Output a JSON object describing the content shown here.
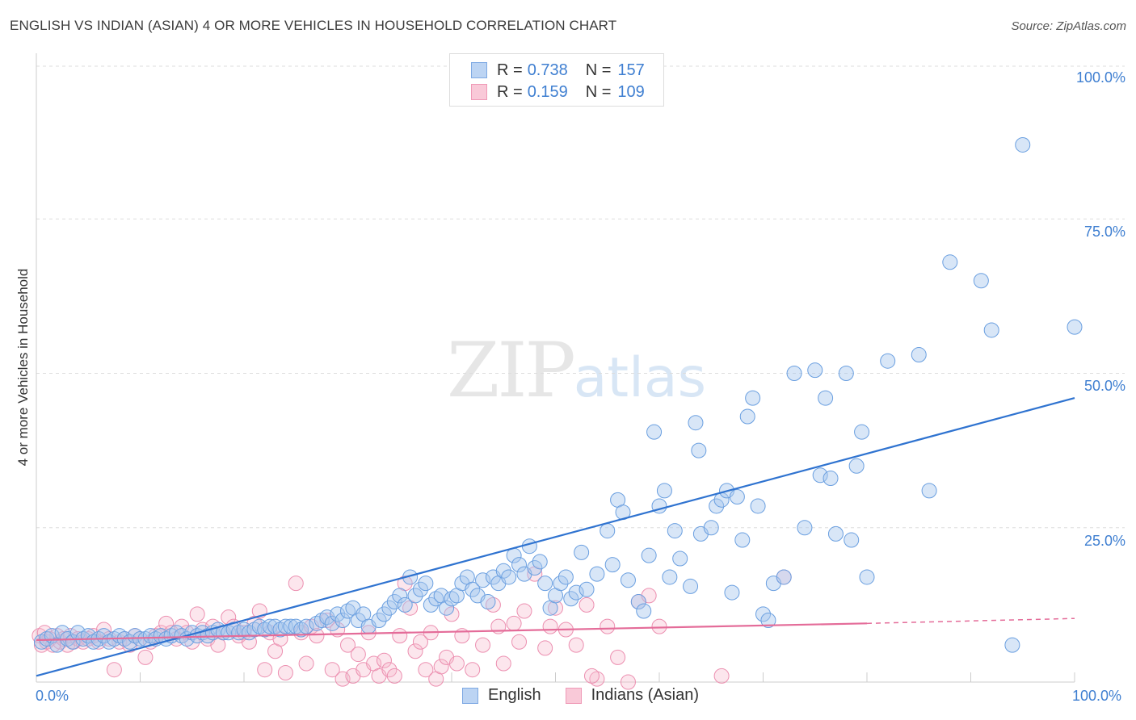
{
  "title": "ENGLISH VS INDIAN (ASIAN) 4 OR MORE VEHICLES IN HOUSEHOLD CORRELATION CHART",
  "source": "Source: ZipAtlas.com",
  "watermark": {
    "zip": "ZIP",
    "atlas": "atlas"
  },
  "legend_top": {
    "rows": [
      {
        "r_label": "R =",
        "r_value": "0.738",
        "n_label": "N =",
        "n_value": "157",
        "color": "#a9c8ee"
      },
      {
        "r_label": "R =",
        "r_value": "0.159",
        "n_label": "N =",
        "n_value": "109",
        "color": "#f5b8cc"
      }
    ]
  },
  "legend_bottom": [
    {
      "label": "English",
      "color": "#a9c8ee"
    },
    {
      "label": "Indians (Asian)",
      "color": "#f5b8cc"
    }
  ],
  "axes": {
    "ylabel": "4 or more Vehicles in Household",
    "y_ticks": [
      "100.0%",
      "75.0%",
      "50.0%",
      "25.0%"
    ],
    "x_ticks": [
      "0.0%",
      "100.0%"
    ]
  },
  "colors": {
    "english": "#6a9fe0",
    "english_line": "#2f73d0",
    "indian": "#ec8fb0",
    "indian_line": "#e46c99",
    "grid": "#dddddd"
  },
  "chart_data": {
    "type": "scatter",
    "title": "ENGLISH VS INDIAN (ASIAN) 4 OR MORE VEHICLES IN HOUSEHOLD CORRELATION CHART",
    "xlabel": "",
    "ylabel": "4 or more Vehicles in Household",
    "xlim": [
      0,
      100
    ],
    "ylim": [
      0,
      100
    ],
    "grid": true,
    "legend_placement": "top-center",
    "series": [
      {
        "name": "English",
        "r": 0.738,
        "n": 157,
        "trend": {
          "x0": 0,
          "y0": 1.0,
          "x1": 100,
          "y1": 46.0
        },
        "points": [
          [
            0.5,
            6.5
          ],
          [
            1,
            7
          ],
          [
            1.5,
            7.5
          ],
          [
            2,
            6
          ],
          [
            2.5,
            8
          ],
          [
            3,
            7
          ],
          [
            3.5,
            6.5
          ],
          [
            4,
            8
          ],
          [
            4.5,
            7
          ],
          [
            5,
            7.5
          ],
          [
            5.5,
            6.5
          ],
          [
            6,
            7
          ],
          [
            6.5,
            7.5
          ],
          [
            7,
            6.5
          ],
          [
            7.5,
            7
          ],
          [
            8,
            7.5
          ],
          [
            8.5,
            7
          ],
          [
            9,
            6.5
          ],
          [
            9.5,
            7.5
          ],
          [
            10,
            7
          ],
          [
            10.5,
            7
          ],
          [
            11,
            7.5
          ],
          [
            11.5,
            7
          ],
          [
            12,
            7.5
          ],
          [
            12.5,
            7
          ],
          [
            13,
            7.5
          ],
          [
            13.5,
            8
          ],
          [
            14,
            7.5
          ],
          [
            14.5,
            7
          ],
          [
            15,
            8
          ],
          [
            15.5,
            7.5
          ],
          [
            16,
            8
          ],
          [
            16.5,
            7.5
          ],
          [
            17,
            8
          ],
          [
            17.5,
            8.5
          ],
          [
            18,
            8
          ],
          [
            18.5,
            8
          ],
          [
            19,
            8.5
          ],
          [
            19.5,
            8
          ],
          [
            20,
            8.5
          ],
          [
            20.5,
            8
          ],
          [
            21,
            8.5
          ],
          [
            21.5,
            9
          ],
          [
            22,
            8.5
          ],
          [
            22.5,
            9
          ],
          [
            23,
            9
          ],
          [
            23.5,
            8.5
          ],
          [
            24,
            9
          ],
          [
            24.5,
            9
          ],
          [
            25,
            9
          ],
          [
            25.5,
            8.5
          ],
          [
            26,
            9
          ],
          [
            27,
            9.5
          ],
          [
            27.5,
            10
          ],
          [
            28,
            10.5
          ],
          [
            28.5,
            9.5
          ],
          [
            29,
            11
          ],
          [
            29.5,
            10
          ],
          [
            30,
            11.5
          ],
          [
            30.5,
            12
          ],
          [
            31,
            10
          ],
          [
            31.5,
            11
          ],
          [
            32,
            9
          ],
          [
            33,
            10
          ],
          [
            33.5,
            11
          ],
          [
            34,
            12
          ],
          [
            34.5,
            13
          ],
          [
            35,
            14
          ],
          [
            35.5,
            12.5
          ],
          [
            36,
            17
          ],
          [
            36.5,
            14
          ],
          [
            37,
            15
          ],
          [
            37.5,
            16
          ],
          [
            38,
            12.5
          ],
          [
            38.5,
            13.5
          ],
          [
            39,
            14
          ],
          [
            39.5,
            12
          ],
          [
            40,
            13.5
          ],
          [
            40.5,
            14
          ],
          [
            41,
            16
          ],
          [
            41.5,
            17
          ],
          [
            42,
            15
          ],
          [
            42.5,
            14
          ],
          [
            43,
            16.5
          ],
          [
            43.5,
            13
          ],
          [
            44,
            17
          ],
          [
            44.5,
            16
          ],
          [
            45,
            18
          ],
          [
            45.5,
            17
          ],
          [
            46,
            20.5
          ],
          [
            46.5,
            19
          ],
          [
            47,
            17.5
          ],
          [
            47.5,
            22
          ],
          [
            48,
            18.5
          ],
          [
            48.5,
            19.5
          ],
          [
            49,
            16
          ],
          [
            49.5,
            12
          ],
          [
            50,
            14
          ],
          [
            50.5,
            16
          ],
          [
            51,
            17
          ],
          [
            51.5,
            13.5
          ],
          [
            52,
            14.5
          ],
          [
            52.5,
            21
          ],
          [
            53,
            15
          ],
          [
            54,
            17.5
          ],
          [
            55,
            24.5
          ],
          [
            55.5,
            19
          ],
          [
            56,
            29.5
          ],
          [
            56.5,
            27.5
          ],
          [
            57,
            16.5
          ],
          [
            58,
            13
          ],
          [
            58.5,
            11.5
          ],
          [
            59,
            20.5
          ],
          [
            59.5,
            40.5
          ],
          [
            60,
            28.5
          ],
          [
            60.5,
            31
          ],
          [
            61,
            17
          ],
          [
            61.5,
            24.5
          ],
          [
            62,
            20
          ],
          [
            63,
            15.5
          ],
          [
            63.5,
            42
          ],
          [
            63.8,
            37.5
          ],
          [
            64,
            24
          ],
          [
            65,
            25
          ],
          [
            65.5,
            28.5
          ],
          [
            66,
            29.5
          ],
          [
            66.5,
            31
          ],
          [
            67,
            14.5
          ],
          [
            67.5,
            30
          ],
          [
            68,
            23
          ],
          [
            68.5,
            43
          ],
          [
            69,
            46
          ],
          [
            69.5,
            28.5
          ],
          [
            70,
            11
          ],
          [
            70.5,
            10
          ],
          [
            71,
            16
          ],
          [
            72,
            17
          ],
          [
            73,
            50
          ],
          [
            74,
            25
          ],
          [
            75,
            50.5
          ],
          [
            75.5,
            33.5
          ],
          [
            76,
            46
          ],
          [
            76.5,
            33
          ],
          [
            77,
            24
          ],
          [
            78,
            50
          ],
          [
            78.5,
            23
          ],
          [
            79,
            35
          ],
          [
            79.5,
            40.5
          ],
          [
            80,
            17
          ],
          [
            82,
            52
          ],
          [
            85,
            53
          ],
          [
            86,
            31
          ],
          [
            88,
            68
          ],
          [
            91,
            65
          ],
          [
            92,
            57
          ],
          [
            94,
            6
          ],
          [
            95,
            87
          ],
          [
            100,
            57.5
          ]
        ]
      },
      {
        "name": "Indians (Asian)",
        "r": 0.159,
        "n": 109,
        "trend": {
          "x0": 0,
          "y0": 6.8,
          "x1": 80,
          "y1": 9.5,
          "dashed_to": {
            "x": 100,
            "y": 10.3
          }
        },
        "points": [
          [
            0.3,
            7.5
          ],
          [
            0.5,
            6
          ],
          [
            0.8,
            8
          ],
          [
            1,
            6.5
          ],
          [
            1.3,
            7
          ],
          [
            1.6,
            6
          ],
          [
            2,
            7.5
          ],
          [
            2.3,
            6.5
          ],
          [
            2.6,
            7
          ],
          [
            3,
            6
          ],
          [
            3.3,
            7.5
          ],
          [
            3.6,
            6.5
          ],
          [
            4,
            7
          ],
          [
            4.5,
            6.5
          ],
          [
            5,
            7
          ],
          [
            5.5,
            7.5
          ],
          [
            6,
            6.5
          ],
          [
            6.5,
            8.5
          ],
          [
            7,
            7
          ],
          [
            7.5,
            2
          ],
          [
            8,
            6.5
          ],
          [
            8.5,
            7
          ],
          [
            9,
            6
          ],
          [
            9.5,
            7.5
          ],
          [
            10,
            7
          ],
          [
            10.5,
            4
          ],
          [
            11,
            6.5
          ],
          [
            11.5,
            7.5
          ],
          [
            12,
            8
          ],
          [
            12.5,
            9.5
          ],
          [
            13,
            8
          ],
          [
            13.5,
            7
          ],
          [
            14,
            9
          ],
          [
            14.5,
            8
          ],
          [
            15,
            6.5
          ],
          [
            15.5,
            11
          ],
          [
            16,
            8.5
          ],
          [
            16.5,
            7
          ],
          [
            17,
            9
          ],
          [
            17.5,
            6
          ],
          [
            18,
            8
          ],
          [
            18.5,
            10.5
          ],
          [
            19,
            9
          ],
          [
            19.5,
            7.5
          ],
          [
            20,
            8
          ],
          [
            20.5,
            6.5
          ],
          [
            21,
            9.5
          ],
          [
            21.5,
            11.5
          ],
          [
            22,
            2
          ],
          [
            22.5,
            8
          ],
          [
            23,
            5
          ],
          [
            23.5,
            7
          ],
          [
            24,
            1.5
          ],
          [
            25,
            16
          ],
          [
            25.5,
            8
          ],
          [
            26,
            3
          ],
          [
            26.5,
            9
          ],
          [
            27,
            7.5
          ],
          [
            28,
            10
          ],
          [
            28.5,
            2
          ],
          [
            29,
            8.5
          ],
          [
            29.5,
            0.5
          ],
          [
            30,
            6
          ],
          [
            30.5,
            1
          ],
          [
            31,
            4.5
          ],
          [
            31.5,
            2
          ],
          [
            32,
            8
          ],
          [
            32.5,
            3
          ],
          [
            33,
            1
          ],
          [
            33.5,
            3.5
          ],
          [
            34,
            2
          ],
          [
            34.5,
            1
          ],
          [
            35,
            7.5
          ],
          [
            35.5,
            16
          ],
          [
            36,
            12
          ],
          [
            36.5,
            5
          ],
          [
            37,
            6.5
          ],
          [
            37.5,
            2
          ],
          [
            38,
            8
          ],
          [
            38.5,
            0.5
          ],
          [
            39,
            2.5
          ],
          [
            39.5,
            4
          ],
          [
            40,
            11
          ],
          [
            40.5,
            3
          ],
          [
            41,
            7.5
          ],
          [
            42,
            2
          ],
          [
            43,
            6
          ],
          [
            44,
            12.5
          ],
          [
            44.5,
            9
          ],
          [
            45,
            3
          ],
          [
            46,
            9.5
          ],
          [
            46.5,
            6.5
          ],
          [
            47,
            11.5
          ],
          [
            48,
            17.5
          ],
          [
            49,
            5.5
          ],
          [
            49.5,
            9
          ],
          [
            50,
            12
          ],
          [
            51,
            8.5
          ],
          [
            52,
            6
          ],
          [
            53,
            12.5
          ],
          [
            54,
            0.5
          ],
          [
            55,
            9
          ],
          [
            56,
            4
          ],
          [
            57,
            0
          ],
          [
            58,
            13
          ],
          [
            59,
            14
          ],
          [
            60,
            9
          ],
          [
            66,
            1
          ],
          [
            72,
            17
          ],
          [
            53.5,
            1
          ]
        ]
      }
    ]
  }
}
